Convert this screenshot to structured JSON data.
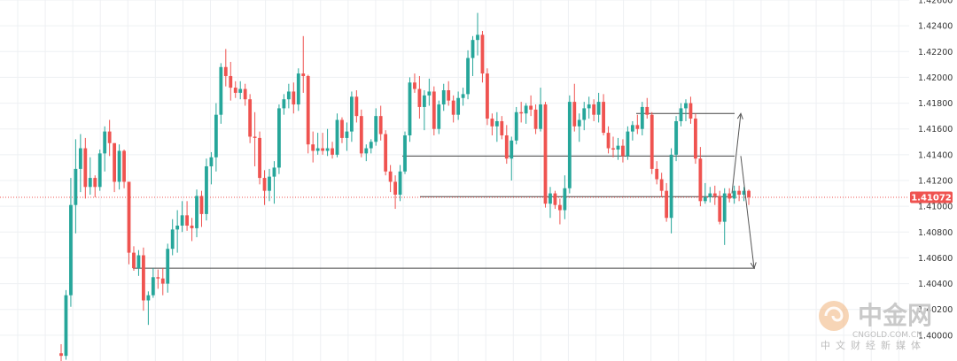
{
  "chart_data": {
    "type": "candlestick",
    "ylim": [
      1.398,
      1.426
    ],
    "y_ticks": [
      "1.40000",
      "1.40200",
      "1.40400",
      "1.40600",
      "1.40800",
      "1.41000",
      "1.41200",
      "1.41400",
      "1.41600",
      "1.41800",
      "1.42000",
      "1.42200",
      "1.42400",
      "1.42600"
    ],
    "last_price": "1.41072",
    "grid": true,
    "colors": {
      "up": "#26a69a",
      "down": "#ef5350",
      "grid": "#eef0f3",
      "axis_text": "#333333",
      "level_line": "#444444",
      "price_tag": "#ef5350"
    },
    "candles": [
      [
        1.3986,
        1.3993,
        1.3979,
        1.3984
      ],
      [
        1.3984,
        1.4035,
        1.3981,
        1.4031
      ],
      [
        1.4031,
        1.4122,
        1.4022,
        1.4101
      ],
      [
        1.4101,
        1.4152,
        1.4079,
        1.4129
      ],
      [
        1.4129,
        1.4156,
        1.4111,
        1.4145
      ],
      [
        1.4145,
        1.4153,
        1.4106,
        1.4115
      ],
      [
        1.4115,
        1.4138,
        1.4109,
        1.4122
      ],
      [
        1.4122,
        1.4124,
        1.4107,
        1.4115
      ],
      [
        1.4115,
        1.4144,
        1.4112,
        1.4141
      ],
      [
        1.4141,
        1.4162,
        1.4127,
        1.4158
      ],
      [
        1.4158,
        1.4167,
        1.4139,
        1.4149
      ],
      [
        1.4149,
        1.4149,
        1.4111,
        1.4119
      ],
      [
        1.4119,
        1.4148,
        1.4113,
        1.4143
      ],
      [
        1.4143,
        1.4144,
        1.4114,
        1.4119
      ],
      [
        1.4119,
        1.4119,
        1.4055,
        1.4064
      ],
      [
        1.4064,
        1.4069,
        1.405,
        1.4052
      ],
      [
        1.4052,
        1.4066,
        1.4046,
        1.4062
      ],
      [
        1.4062,
        1.4068,
        1.4019,
        1.4027
      ],
      [
        1.4027,
        1.4034,
        1.4008,
        1.4031
      ],
      [
        1.4031,
        1.4052,
        1.4029,
        1.4045
      ],
      [
        1.4045,
        1.4051,
        1.4036,
        1.4044
      ],
      [
        1.4044,
        1.4052,
        1.4031,
        1.404
      ],
      [
        1.404,
        1.4071,
        1.4033,
        1.4067
      ],
      [
        1.4067,
        1.409,
        1.4062,
        1.4082
      ],
      [
        1.4082,
        1.4097,
        1.4064,
        1.4085
      ],
      [
        1.4085,
        1.4104,
        1.408,
        1.4093
      ],
      [
        1.4093,
        1.4104,
        1.4081,
        1.4085
      ],
      [
        1.4085,
        1.4091,
        1.4073,
        1.4083
      ],
      [
        1.4083,
        1.4113,
        1.4076,
        1.4108
      ],
      [
        1.4108,
        1.4112,
        1.4084,
        1.4094
      ],
      [
        1.4094,
        1.4137,
        1.4089,
        1.4131
      ],
      [
        1.4131,
        1.4142,
        1.4117,
        1.4138
      ],
      [
        1.4138,
        1.418,
        1.4127,
        1.4171
      ],
      [
        1.4171,
        1.4211,
        1.4164,
        1.4208
      ],
      [
        1.4208,
        1.4222,
        1.4193,
        1.4201
      ],
      [
        1.4201,
        1.4212,
        1.4182,
        1.4192
      ],
      [
        1.4192,
        1.4197,
        1.4184,
        1.4188
      ],
      [
        1.4188,
        1.4197,
        1.4183,
        1.4191
      ],
      [
        1.4191,
        1.4195,
        1.4178,
        1.4183
      ],
      [
        1.4183,
        1.4187,
        1.4149,
        1.4154
      ],
      [
        1.4154,
        1.4173,
        1.4131,
        1.4153
      ],
      [
        1.4153,
        1.4158,
        1.4117,
        1.4122
      ],
      [
        1.4122,
        1.4128,
        1.4101,
        1.4112
      ],
      [
        1.4112,
        1.4129,
        1.4104,
        1.4123
      ],
      [
        1.4123,
        1.4135,
        1.4102,
        1.413
      ],
      [
        1.413,
        1.4179,
        1.4125,
        1.4176
      ],
      [
        1.4176,
        1.4187,
        1.4171,
        1.4183
      ],
      [
        1.4183,
        1.4195,
        1.4176,
        1.4189
      ],
      [
        1.4189,
        1.4196,
        1.4172,
        1.4179
      ],
      [
        1.4179,
        1.4207,
        1.4174,
        1.4203
      ],
      [
        1.4203,
        1.4232,
        1.4188,
        1.4201
      ],
      [
        1.4201,
        1.4202,
        1.4141,
        1.4148
      ],
      [
        1.4148,
        1.4158,
        1.4134,
        1.4143
      ],
      [
        1.4143,
        1.4157,
        1.414,
        1.4145
      ],
      [
        1.4145,
        1.4157,
        1.414,
        1.4143
      ],
      [
        1.4143,
        1.416,
        1.4139,
        1.4145
      ],
      [
        1.4145,
        1.415,
        1.4137,
        1.414
      ],
      [
        1.414,
        1.4172,
        1.4138,
        1.4167
      ],
      [
        1.4167,
        1.4169,
        1.4149,
        1.4153
      ],
      [
        1.4153,
        1.4165,
        1.4143,
        1.4158
      ],
      [
        1.4158,
        1.4189,
        1.415,
        1.4185
      ],
      [
        1.4185,
        1.419,
        1.4165,
        1.417
      ],
      [
        1.417,
        1.4175,
        1.4138,
        1.4141
      ],
      [
        1.4141,
        1.4148,
        1.4135,
        1.4145
      ],
      [
        1.4145,
        1.4152,
        1.4141,
        1.415
      ],
      [
        1.415,
        1.4176,
        1.4147,
        1.417
      ],
      [
        1.417,
        1.4178,
        1.4151,
        1.4156
      ],
      [
        1.4156,
        1.4159,
        1.4124,
        1.4127
      ],
      [
        1.4127,
        1.4132,
        1.4111,
        1.4119
      ],
      [
        1.4119,
        1.4124,
        1.4098,
        1.4109
      ],
      [
        1.4109,
        1.4132,
        1.4104,
        1.4127
      ],
      [
        1.4127,
        1.4158,
        1.4125,
        1.4155
      ],
      [
        1.4155,
        1.42,
        1.415,
        1.4196
      ],
      [
        1.4196,
        1.4203,
        1.4188,
        1.4191
      ],
      [
        1.4191,
        1.4201,
        1.4168,
        1.4177
      ],
      [
        1.4177,
        1.419,
        1.4159,
        1.4186
      ],
      [
        1.4186,
        1.4199,
        1.4178,
        1.4189
      ],
      [
        1.4189,
        1.4193,
        1.4155,
        1.416
      ],
      [
        1.416,
        1.4182,
        1.4156,
        1.4179
      ],
      [
        1.4179,
        1.4195,
        1.4174,
        1.419
      ],
      [
        1.419,
        1.4197,
        1.4178,
        1.4182
      ],
      [
        1.4182,
        1.4186,
        1.4165,
        1.4171
      ],
      [
        1.4171,
        1.4189,
        1.4167,
        1.4184
      ],
      [
        1.4184,
        1.4192,
        1.4178,
        1.4187
      ],
      [
        1.4187,
        1.4221,
        1.4183,
        1.4215
      ],
      [
        1.4215,
        1.4232,
        1.4201,
        1.4229
      ],
      [
        1.4229,
        1.425,
        1.4217,
        1.4233
      ],
      [
        1.4233,
        1.4236,
        1.4196,
        1.4203
      ],
      [
        1.4203,
        1.4207,
        1.4163,
        1.4168
      ],
      [
        1.4168,
        1.4172,
        1.4155,
        1.4162
      ],
      [
        1.4162,
        1.4173,
        1.415,
        1.4166
      ],
      [
        1.4166,
        1.417,
        1.4152,
        1.4155
      ],
      [
        1.4155,
        1.4163,
        1.4133,
        1.4137
      ],
      [
        1.4137,
        1.4154,
        1.412,
        1.4151
      ],
      [
        1.4151,
        1.4177,
        1.4148,
        1.4173
      ],
      [
        1.4173,
        1.4181,
        1.4165,
        1.4172
      ],
      [
        1.4172,
        1.418,
        1.4164,
        1.4178
      ],
      [
        1.4178,
        1.4186,
        1.417,
        1.4175
      ],
      [
        1.4175,
        1.4179,
        1.4156,
        1.416
      ],
      [
        1.416,
        1.4192,
        1.4158,
        1.4179
      ],
      [
        1.4179,
        1.4181,
        1.4099,
        1.4102
      ],
      [
        1.4102,
        1.4115,
        1.4091,
        1.411
      ],
      [
        1.411,
        1.4112,
        1.4098,
        1.4101
      ],
      [
        1.4101,
        1.4106,
        1.4086,
        1.4097
      ],
      [
        1.4097,
        1.4124,
        1.409,
        1.4114
      ],
      [
        1.4114,
        1.4186,
        1.411,
        1.4181
      ],
      [
        1.4181,
        1.4195,
        1.4158,
        1.4162
      ],
      [
        1.4162,
        1.4172,
        1.415,
        1.4167
      ],
      [
        1.4167,
        1.4181,
        1.4159,
        1.4176
      ],
      [
        1.4176,
        1.4185,
        1.4168,
        1.4179
      ],
      [
        1.4179,
        1.4183,
        1.4166,
        1.4171
      ],
      [
        1.4171,
        1.4188,
        1.4165,
        1.4181
      ],
      [
        1.4181,
        1.4187,
        1.4155,
        1.4157
      ],
      [
        1.4157,
        1.4162,
        1.4141,
        1.4145
      ],
      [
        1.4145,
        1.4154,
        1.4138,
        1.4144
      ],
      [
        1.4144,
        1.4153,
        1.4136,
        1.4147
      ],
      [
        1.4147,
        1.4152,
        1.4134,
        1.4139
      ],
      [
        1.4139,
        1.4162,
        1.4136,
        1.4158
      ],
      [
        1.4158,
        1.4166,
        1.4151,
        1.4163
      ],
      [
        1.4163,
        1.4171,
        1.4156,
        1.416
      ],
      [
        1.416,
        1.4181,
        1.4155,
        1.4177
      ],
      [
        1.4177,
        1.4184,
        1.4168,
        1.4171
      ],
      [
        1.4171,
        1.4173,
        1.4125,
        1.4129
      ],
      [
        1.4129,
        1.4135,
        1.4117,
        1.4121
      ],
      [
        1.4121,
        1.4126,
        1.4107,
        1.4112
      ],
      [
        1.4112,
        1.4118,
        1.4088,
        1.4091
      ],
      [
        1.4091,
        1.4145,
        1.4079,
        1.414
      ],
      [
        1.414,
        1.417,
        1.4135,
        1.4166
      ],
      [
        1.4166,
        1.418,
        1.4162,
        1.4176
      ],
      [
        1.4176,
        1.4183,
        1.4166,
        1.418
      ],
      [
        1.418,
        1.4185,
        1.4164,
        1.4168
      ],
      [
        1.4168,
        1.4172,
        1.4133,
        1.4137
      ],
      [
        1.4137,
        1.4146,
        1.41,
        1.4104
      ],
      [
        1.4104,
        1.4118,
        1.4102,
        1.4107
      ],
      [
        1.4107,
        1.4115,
        1.4103,
        1.411
      ],
      [
        1.411,
        1.4116,
        1.4101,
        1.4108
      ],
      [
        1.4108,
        1.4112,
        1.4086,
        1.4088
      ],
      [
        1.4088,
        1.4114,
        1.407,
        1.411
      ],
      [
        1.411,
        1.4114,
        1.4103,
        1.4106
      ],
      [
        1.4106,
        1.4116,
        1.4102,
        1.4112
      ],
      [
        1.4112,
        1.4116,
        1.4104,
        1.4109
      ],
      [
        1.4109,
        1.4115,
        1.4104,
        1.4112
      ],
      [
        1.4112,
        1.4113,
        1.4101,
        1.4107
      ]
    ],
    "annotations": [
      {
        "type": "horizontal_line",
        "y": 1.4052
      },
      {
        "type": "horizontal_line",
        "y": 1.4139
      },
      {
        "type": "horizontal_line",
        "y": 1.41075
      },
      {
        "type": "horizontal_line",
        "y": 1.4172
      },
      {
        "type": "arrow",
        "from": 1.411,
        "to": 1.4172
      },
      {
        "type": "arrow",
        "from": 1.4139,
        "to": 1.4052
      }
    ]
  },
  "watermark": {
    "title": "中金网",
    "domain": "CNGOLD.COM.CN",
    "subtitle": "中文财经新媒体"
  }
}
